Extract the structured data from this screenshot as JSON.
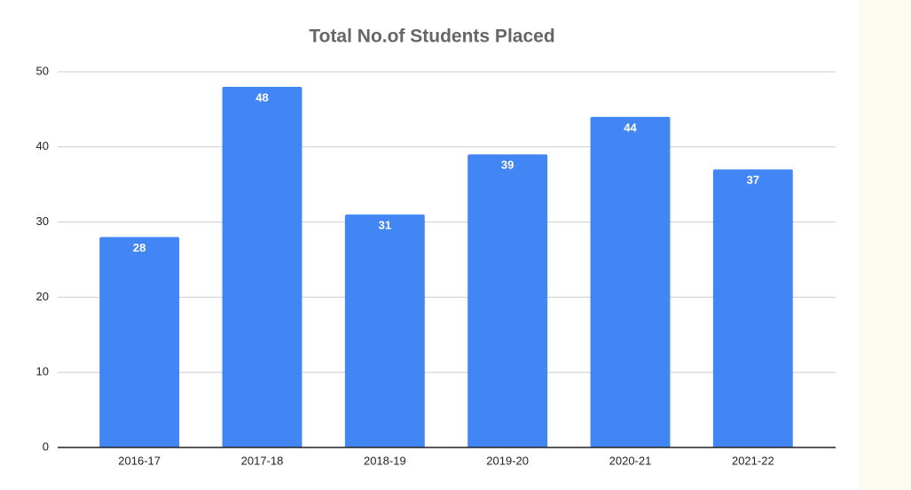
{
  "chart_data": {
    "type": "bar",
    "title": "Total No.of Students Placed",
    "categories": [
      "2016-17",
      "2017-18",
      "2018-19",
      "2019-20",
      "2020-21",
      "2021-22"
    ],
    "values": [
      28,
      48,
      31,
      39,
      44,
      37
    ],
    "color": "#4285f4",
    "ylim": [
      0,
      50
    ],
    "yticks": [
      0,
      10,
      20,
      30,
      40,
      50
    ],
    "grid": true
  }
}
